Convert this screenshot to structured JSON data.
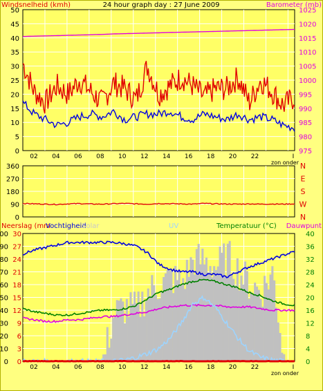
{
  "title": "24 hour graph day : 27 June 2009",
  "colors": {
    "background": "#ffff80",
    "plot_bg": "#ffff66",
    "grid": "#ffffff",
    "frame": "#000000",
    "red": "#e00000",
    "blue": "#0000e0",
    "magenta": "#e000e0",
    "green": "#008000",
    "grey": "#c0c0c0",
    "lightblue": "#9dd4ff",
    "axis_text": "#000000"
  },
  "chart_data": [
    {
      "id": "wind_baro",
      "type": "line",
      "left_label": "Windsnelheid (kmh)",
      "right_label": "Barometer (mb)",
      "left_ticks": [
        "0",
        "5",
        "10",
        "15",
        "20",
        "25",
        "30",
        "35",
        "40",
        "45",
        "50"
      ],
      "right_ticks": [
        "975",
        "980",
        "985",
        "990",
        "995",
        "1000",
        "1005",
        "1010",
        "1015",
        "1020",
        "1025"
      ],
      "ylim_left": [
        0,
        50
      ],
      "ylim_right": [
        975,
        1025
      ],
      "x_ticks": [
        "02",
        "04",
        "06",
        "08",
        "10",
        "12",
        "14",
        "16",
        "18",
        "20",
        "22"
      ],
      "x_end_label": "zon onder",
      "series": [
        {
          "key": "barometer",
          "axis": "right",
          "color": "magenta",
          "values": [
            1015.5,
            1015.6,
            1015.7,
            1015.8,
            1015.9,
            1016.0,
            1016.1,
            1016.2,
            1016.4,
            1016.5,
            1016.6,
            1016.7,
            1016.8,
            1016.9,
            1017.0,
            1017.1,
            1017.2,
            1017.3,
            1017.4,
            1017.5,
            1017.6,
            1017.7,
            1017.8,
            1017.9,
            1018.0
          ]
        },
        {
          "key": "wind_gust",
          "axis": "left",
          "color": "red",
          "values": [
            31,
            21,
            17,
            23,
            20,
            25,
            21,
            17,
            24,
            22,
            18,
            30,
            20,
            23,
            26,
            23,
            19,
            22,
            22,
            26,
            17,
            25,
            21,
            16,
            19
          ]
        },
        {
          "key": "wind_avg",
          "axis": "left",
          "color": "blue",
          "values": [
            17,
            13,
            11,
            9,
            10,
            12,
            13,
            12,
            14,
            11,
            12,
            13,
            13,
            14,
            12,
            11,
            13,
            12,
            11,
            13,
            11,
            12,
            11,
            9,
            8
          ]
        }
      ]
    },
    {
      "id": "wind_dir",
      "type": "line",
      "left_ticks": [
        "0",
        "90",
        "180",
        "270",
        "360"
      ],
      "right_ticks": [
        "N",
        "W",
        "S",
        "E",
        "N"
      ],
      "ylim": [
        0,
        360
      ],
      "series": [
        {
          "key": "wind_direction",
          "color": "red",
          "values": [
            95,
            92,
            90,
            88,
            92,
            94,
            91,
            90,
            93,
            95,
            92,
            90,
            94,
            93,
            92,
            90,
            95,
            92,
            91,
            90,
            92,
            90,
            91,
            90,
            92
          ]
        }
      ]
    },
    {
      "id": "rain_humid_temp",
      "type": "line",
      "labels": {
        "neerslag": "Neerslag (mm",
        "vochtigheid": "Vochtigheid",
        "solar": "Solar",
        "uv": "UV",
        "temperatuur": "Temperatuur (°C)",
        "dauwpunt": "Dauwpunt"
      },
      "left_ticks_humidity": [
        "0",
        "10",
        "20",
        "30",
        "40",
        "50",
        "60",
        "70",
        "80",
        "90",
        "100"
      ],
      "left_ticks_rain": [
        "0",
        "3",
        "6",
        "9",
        "12",
        "15",
        "18",
        "21",
        "24",
        "27",
        "30"
      ],
      "right_ticks": [
        "0",
        "4",
        "8",
        "12",
        "16",
        "20",
        "24",
        "28",
        "32",
        "36",
        "40"
      ],
      "ylim_humidity": [
        0,
        100
      ],
      "ylim_temp": [
        0,
        40
      ],
      "x_ticks": [
        "02",
        "04",
        "06",
        "08",
        "10",
        "12",
        "14",
        "16",
        "18",
        "20",
        "22"
      ],
      "x_end_label": "zon onder",
      "series": [
        {
          "key": "humidity",
          "axis": "humidity",
          "color": "blue",
          "values": [
            84,
            87,
            89,
            91,
            93,
            93,
            93,
            93,
            93,
            92,
            90,
            85,
            76,
            72,
            70,
            70,
            68,
            68,
            66,
            70,
            74,
            77,
            80,
            83,
            86
          ]
        },
        {
          "key": "temperature",
          "axis": "temp",
          "color": "green",
          "values": [
            16.5,
            15.5,
            15.0,
            14.5,
            14.5,
            15.0,
            15.5,
            16.0,
            16.0,
            16.5,
            17.5,
            19.5,
            21.5,
            22.5,
            24.0,
            25.0,
            25.5,
            25.0,
            24.0,
            23.0,
            21.5,
            20.5,
            19.0,
            18.0,
            17.5
          ]
        },
        {
          "key": "dewpoint",
          "axis": "temp",
          "color": "magenta",
          "values": [
            13.5,
            13.0,
            12.5,
            12.5,
            13.0,
            13.0,
            13.5,
            14.0,
            14.0,
            14.5,
            15.0,
            15.5,
            16.5,
            17.0,
            17.5,
            17.5,
            17.5,
            17.5,
            17.0,
            17.0,
            17.0,
            16.5,
            16.0,
            16.0,
            16.0
          ]
        },
        {
          "key": "solar",
          "axis": "humidity",
          "color": "grey",
          "values": [
            0,
            0,
            0,
            0,
            0,
            0,
            0,
            0,
            38,
            42,
            40,
            55,
            60,
            65,
            62,
            80,
            78,
            74,
            82,
            70,
            60,
            55,
            70,
            0,
            0
          ]
        },
        {
          "key": "uv",
          "axis": "humidity",
          "color": "lightblue",
          "values": [
            0,
            0,
            0,
            0,
            0,
            0,
            0,
            0,
            0,
            1,
            3,
            6,
            10,
            18,
            30,
            45,
            50,
            42,
            30,
            18,
            8,
            3,
            1,
            0,
            0
          ]
        },
        {
          "key": "rain",
          "axis": "humidity",
          "color": "red",
          "values": [
            0,
            0,
            0,
            0,
            0,
            0,
            0,
            0,
            0,
            0,
            0,
            0,
            0,
            0,
            0,
            0,
            0,
            0,
            0,
            0,
            0,
            0,
            0,
            0,
            0
          ]
        }
      ]
    }
  ]
}
